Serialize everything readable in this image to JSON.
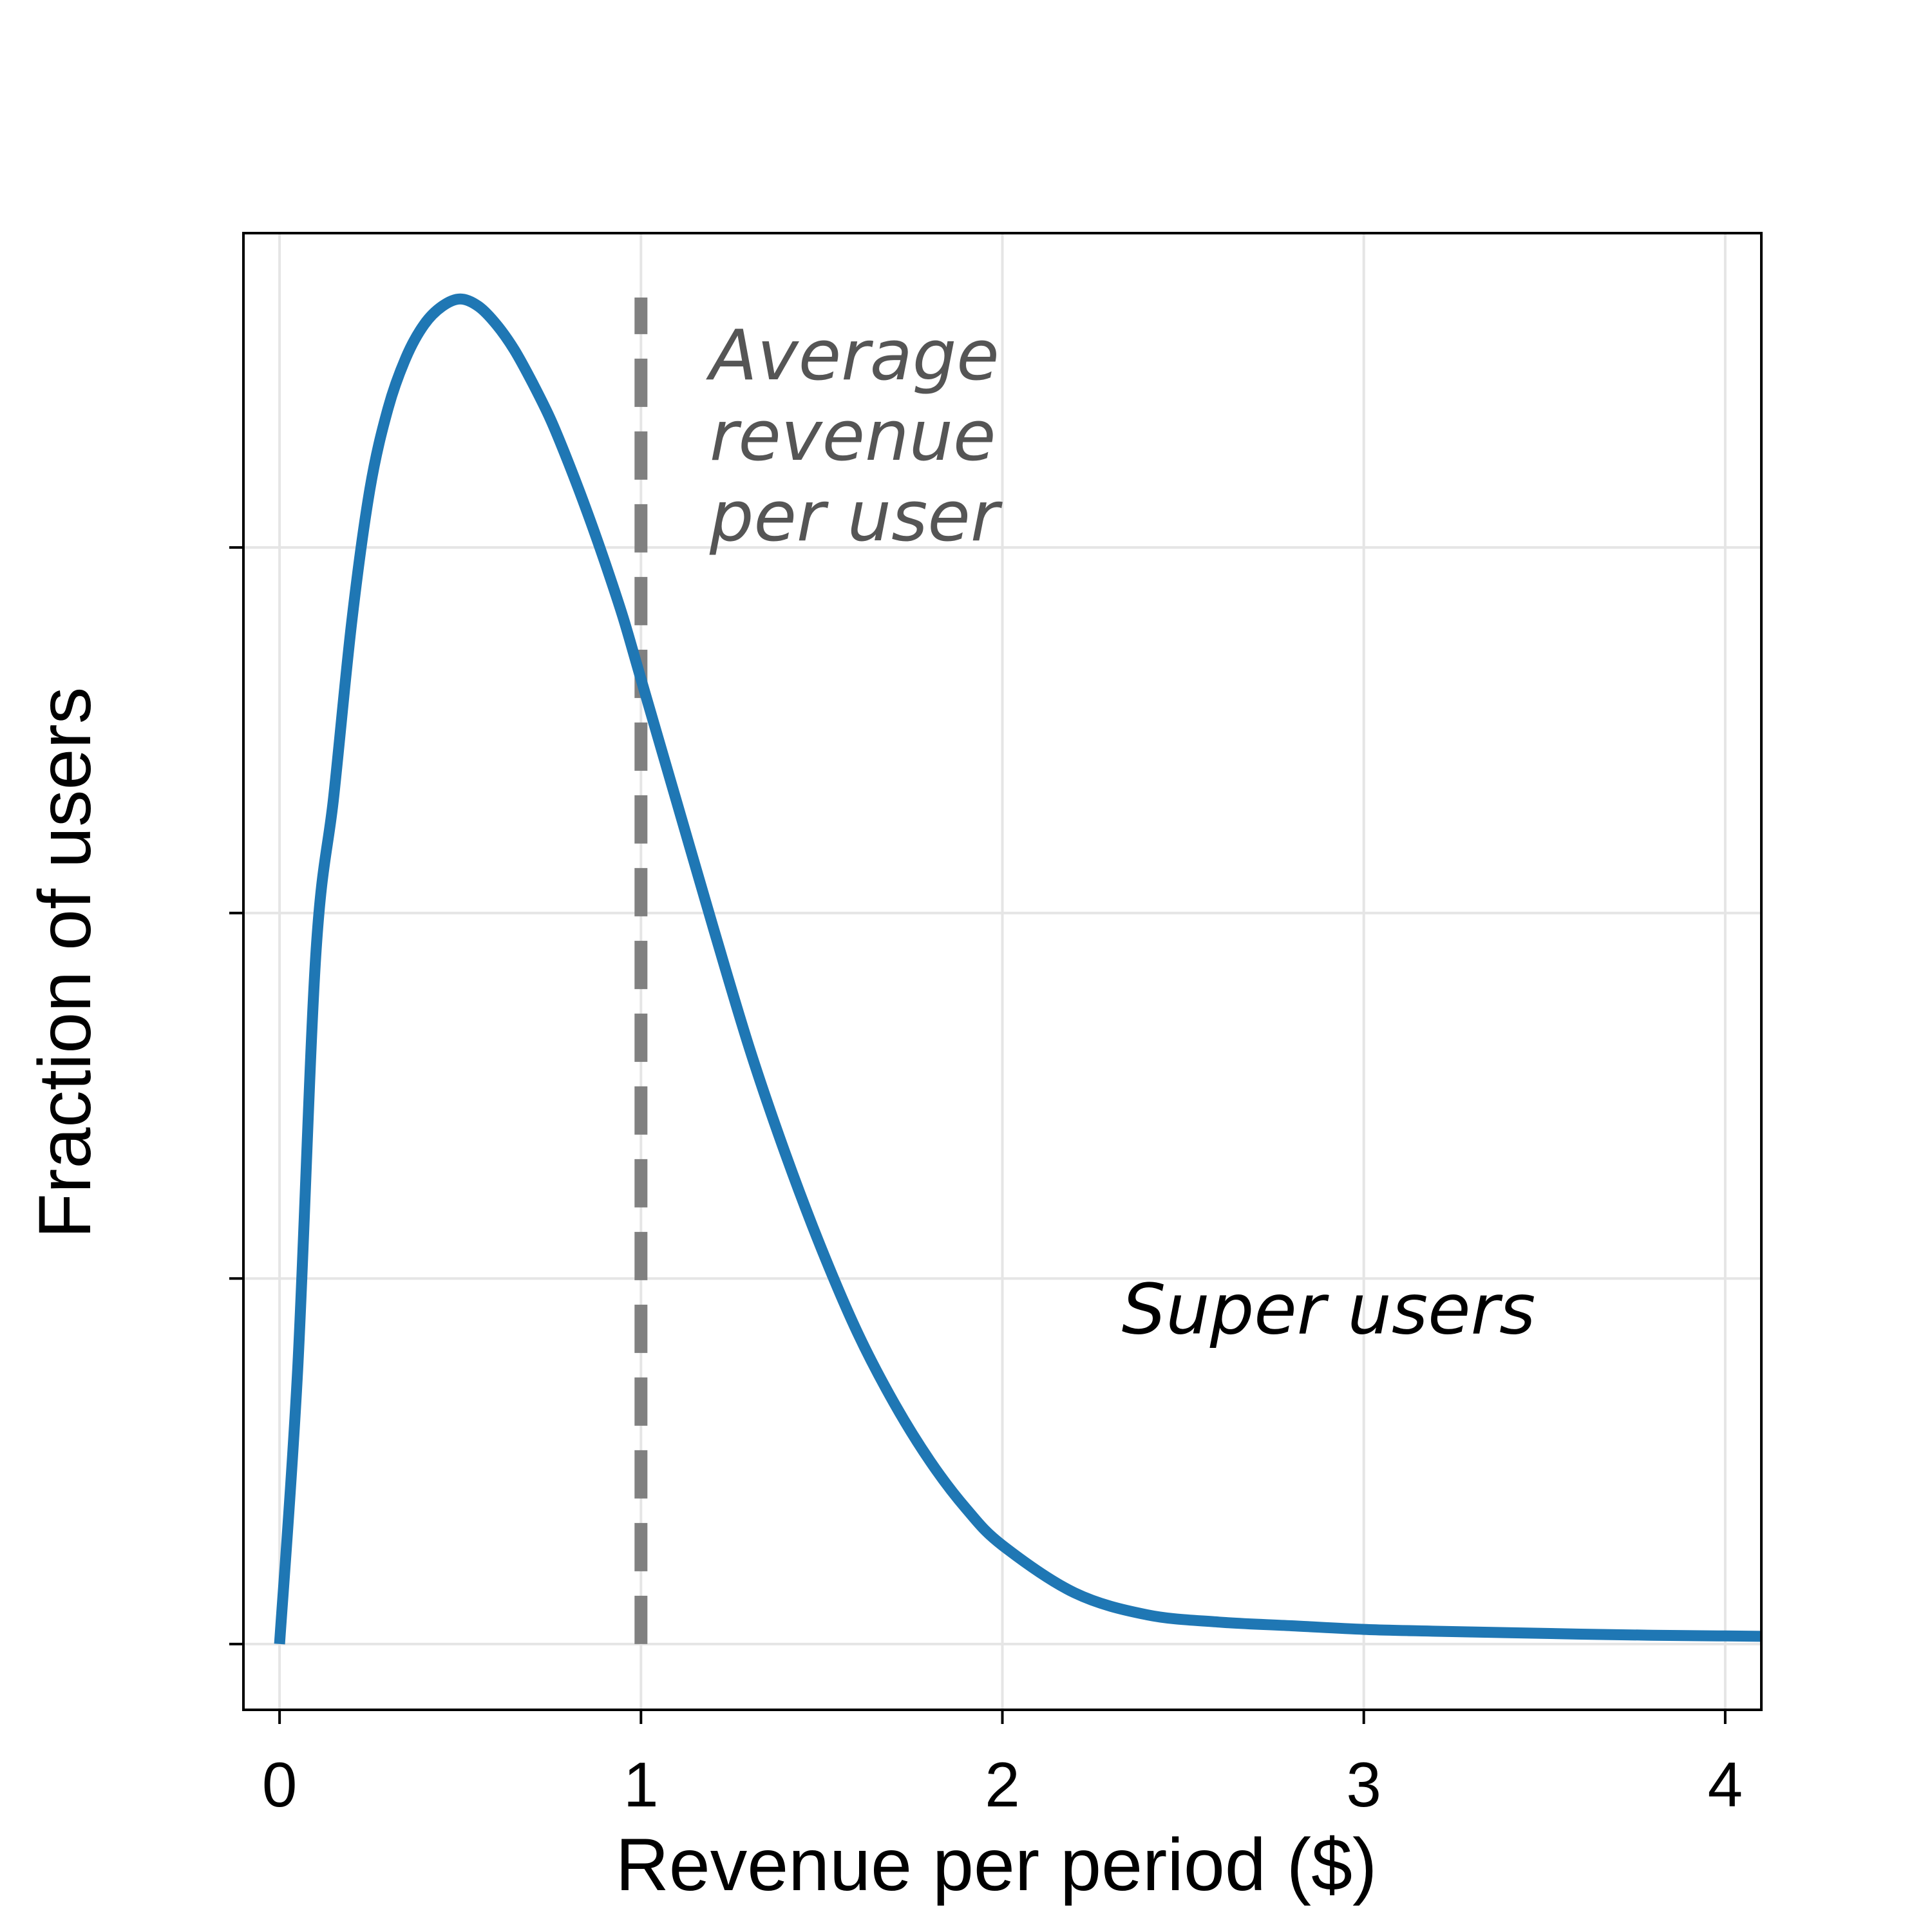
{
  "chart_data": {
    "type": "line",
    "title": "",
    "xlabel": "Revenue per period ($)",
    "ylabel": "Fraction of users",
    "xlim": [
      -0.1,
      4.1
    ],
    "ylim": [
      -0.018,
      0.386
    ],
    "grid": true,
    "x_ticks": [
      0,
      1,
      2,
      3,
      4
    ],
    "x_tick_labels": [
      "0",
      "1",
      "2",
      "3",
      "4"
    ],
    "y_ticks": [
      0,
      0.1,
      0.2,
      0.3
    ],
    "y_tick_labels": [
      "",
      "",
      "",
      ""
    ],
    "series": [
      {
        "color": "#1f77b4",
        "x": [
          0,
          0.05,
          0.1,
          0.15,
          0.2,
          0.25,
          0.3,
          0.35,
          0.4,
          0.45,
          0.5,
          0.55,
          0.6,
          0.65,
          0.7,
          0.75,
          0.8,
          0.85,
          0.9,
          0.95,
          1.0,
          1.1,
          1.2,
          1.3,
          1.4,
          1.5,
          1.6,
          1.7,
          1.8,
          1.9,
          2.0,
          2.2,
          2.4,
          2.6,
          2.8,
          3.0,
          3.2,
          3.4,
          3.6,
          3.8,
          4.0,
          4.1
        ],
        "y": [
          0,
          0.075,
          0.188,
          0.232,
          0.28,
          0.316,
          0.338,
          0.352,
          0.361,
          0.366,
          0.368,
          0.366,
          0.361,
          0.354,
          0.345,
          0.335,
          0.323,
          0.31,
          0.296,
          0.281,
          0.264,
          0.23,
          0.196,
          0.163,
          0.134,
          0.108,
          0.085,
          0.066,
          0.05,
          0.037,
          0.027,
          0.014,
          0.008,
          0.006,
          0.005,
          0.004,
          0.0035,
          0.0031,
          0.0027,
          0.0024,
          0.0022,
          0.0021
        ]
      }
    ],
    "reference_line": {
      "x": 1,
      "style": "dashed",
      "color": "#808080"
    },
    "annotations": [
      {
        "lines": [
          "Average",
          "revenue",
          "per user"
        ],
        "x": 1.19,
        "y": 0.346,
        "color": "#555555"
      },
      {
        "lines": [
          "Super users"
        ],
        "x": 2.33,
        "y": 0.085,
        "color": "#000000"
      }
    ]
  }
}
